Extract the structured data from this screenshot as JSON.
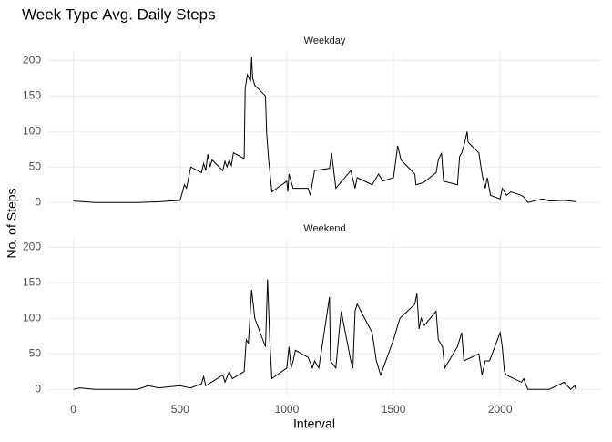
{
  "title": "Week Type Avg. Daily Steps",
  "x_label": "Interval",
  "y_label": "No. of Steps",
  "chart_data": [
    {
      "type": "line",
      "subtitle": "Weekday",
      "x": [
        0,
        50,
        100,
        200,
        300,
        400,
        450,
        500,
        520,
        530,
        550,
        600,
        610,
        620,
        630,
        640,
        650,
        700,
        710,
        720,
        730,
        740,
        750,
        800,
        805,
        815,
        830,
        835,
        840,
        850,
        900,
        905,
        910,
        915,
        920,
        930,
        1000,
        1005,
        1010,
        1030,
        1100,
        1110,
        1130,
        1200,
        1210,
        1230,
        1300,
        1320,
        1330,
        1400,
        1430,
        1450,
        1500,
        1520,
        1535,
        1600,
        1605,
        1640,
        1700,
        1710,
        1725,
        1735,
        1800,
        1810,
        1820,
        1830,
        1845,
        1850,
        1900,
        1915,
        1930,
        1940,
        1955,
        2000,
        2010,
        2030,
        2050,
        2100,
        2110,
        2130,
        2200,
        2230,
        2300,
        2330,
        2355
      ],
      "series": [
        {
          "color": "#000000",
          "values": [
            2,
            1,
            0,
            0,
            0,
            1,
            2,
            3,
            25,
            20,
            50,
            42,
            55,
            45,
            68,
            50,
            60,
            45,
            58,
            50,
            60,
            52,
            70,
            62,
            160,
            180,
            170,
            205,
            175,
            165,
            150,
            100,
            80,
            60,
            45,
            15,
            30,
            15,
            40,
            20,
            20,
            10,
            45,
            48,
            70,
            20,
            45,
            20,
            35,
            25,
            40,
            30,
            35,
            80,
            60,
            40,
            25,
            28,
            42,
            60,
            70,
            30,
            25,
            65,
            70,
            80,
            100,
            85,
            70,
            40,
            20,
            35,
            10,
            5,
            20,
            10,
            15,
            10,
            8,
            0,
            5,
            2,
            3,
            2,
            1
          ]
        }
      ],
      "xlim": [
        -118,
        2473
      ],
      "xticks": [
        0,
        500,
        1000,
        1500,
        2000
      ],
      "ylim": [
        -10,
        212
      ],
      "yticks": [
        0,
        50,
        100,
        150,
        200
      ],
      "grid": true
    },
    {
      "type": "line",
      "subtitle": "Weekend",
      "x": [
        0,
        30,
        100,
        200,
        300,
        350,
        400,
        500,
        530,
        550,
        600,
        610,
        620,
        700,
        710,
        730,
        745,
        800,
        810,
        820,
        835,
        850,
        900,
        910,
        920,
        930,
        1000,
        1010,
        1020,
        1030,
        1040,
        1100,
        1120,
        1130,
        1150,
        1200,
        1205,
        1230,
        1245,
        1255,
        1300,
        1310,
        1320,
        1330,
        1400,
        1420,
        1440,
        1500,
        1530,
        1600,
        1610,
        1620,
        1630,
        1645,
        1700,
        1710,
        1730,
        1740,
        1800,
        1820,
        1830,
        1900,
        1915,
        1930,
        1950,
        2000,
        2010,
        2020,
        2030,
        2100,
        2110,
        2130,
        2200,
        2230,
        2300,
        2330,
        2350,
        2355
      ],
      "series": [
        {
          "color": "#000000",
          "values": [
            0,
            2,
            0,
            0,
            0,
            5,
            2,
            5,
            3,
            2,
            8,
            18,
            5,
            20,
            10,
            25,
            15,
            25,
            70,
            65,
            140,
            100,
            60,
            155,
            70,
            15,
            30,
            60,
            30,
            40,
            55,
            45,
            30,
            40,
            30,
            130,
            40,
            30,
            80,
            110,
            40,
            30,
            110,
            120,
            80,
            40,
            20,
            70,
            100,
            120,
            135,
            85,
            100,
            90,
            110,
            70,
            60,
            30,
            60,
            80,
            40,
            50,
            20,
            40,
            40,
            80,
            60,
            25,
            20,
            10,
            15,
            0,
            0,
            0,
            10,
            0,
            5,
            0
          ]
        }
      ],
      "xlim": [
        -118,
        2473
      ],
      "xticks": [
        0,
        500,
        1000,
        1500,
        2000
      ],
      "ylim": [
        -10,
        212
      ],
      "yticks": [
        0,
        50,
        100,
        150,
        200
      ],
      "grid": true
    }
  ]
}
